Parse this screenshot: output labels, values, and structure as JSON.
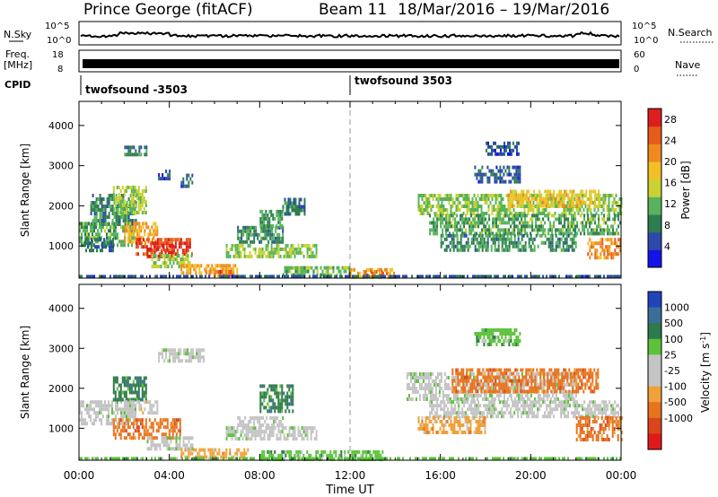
{
  "header": {
    "station": "Prince George (fitACF)",
    "beam": "Beam 11",
    "date_range": "18/Mar/2016 – 19/Mar/2016"
  },
  "noise_panel": {
    "left_label": "N.Sky",
    "right_label": "N.Search",
    "left_ticks": [
      "10^5",
      "10^0"
    ],
    "right_ticks": [
      "10^5",
      "10^0"
    ]
  },
  "freq_panel": {
    "left_label_1": "Freq.",
    "left_label_2": "[MHz]",
    "right_label": "Nave",
    "left_ticks": [
      "18",
      "8"
    ],
    "right_ticks": [
      "60",
      "0"
    ]
  },
  "cpid_panel": {
    "label": "CPID",
    "entries": [
      {
        "name": "twofsound",
        "id": "-3503",
        "start_hour": 0
      },
      {
        "name": "twofsound",
        "id": "3503",
        "start_hour": 12
      }
    ]
  },
  "shared_x_axis": {
    "label": "Time UT",
    "ticks": [
      "00:00",
      "04:00",
      "08:00",
      "12:00",
      "16:00",
      "20:00",
      "00:00"
    ],
    "tick_hours": [
      0,
      4,
      8,
      12,
      16,
      20,
      24
    ]
  },
  "colors": {
    "power_scale": [
      "#1414e6",
      "#2c4aa8",
      "#2e7d50",
      "#58b35c",
      "#c8d232",
      "#f2c026",
      "#f08a1e",
      "#e65a1a",
      "#dc1e1e"
    ],
    "velocity_scale": [
      "#2244bb",
      "#3a6e99",
      "#2d7a4a",
      "#5cc23a",
      "#c4c4c4",
      "#c4c4c4",
      "#f0a23a",
      "#e8731e",
      "#d9461c",
      "#e01a1a"
    ]
  },
  "chart_data": [
    {
      "type": "heatmap",
      "name": "power",
      "xlabel": "",
      "ylabel": "Slant Range [km]",
      "xlim": [
        0,
        24
      ],
      "ylim": [
        200,
        4600
      ],
      "yticks": [
        1000,
        2000,
        3000,
        4000
      ],
      "colorbar_label": "Power [dB]",
      "colorbar_ticks": [
        4,
        8,
        12,
        16,
        20,
        24,
        28
      ],
      "colorbar_range": [
        0,
        30
      ],
      "regions": [
        {
          "t0": 0.0,
          "t1": 2.6,
          "r0": 1000,
          "r1": 1600,
          "v": 11
        },
        {
          "t0": 0.5,
          "t1": 2.5,
          "r0": 1500,
          "r1": 2300,
          "v": 9
        },
        {
          "t0": 1.5,
          "t1": 3.0,
          "r0": 1800,
          "r1": 2500,
          "v": 14
        },
        {
          "t0": 2.0,
          "t1": 3.5,
          "r0": 1100,
          "r1": 1600,
          "v": 20
        },
        {
          "t0": 2.5,
          "t1": 5.0,
          "r0": 800,
          "r1": 1200,
          "v": 26
        },
        {
          "t0": 3.0,
          "t1": 4.2,
          "r0": 700,
          "r1": 1050,
          "v": 29
        },
        {
          "t0": 0.2,
          "t1": 1.5,
          "r0": 900,
          "r1": 1200,
          "v": 7
        },
        {
          "t0": 3.2,
          "t1": 5.0,
          "r0": 500,
          "r1": 800,
          "v": 14
        },
        {
          "t0": 4.5,
          "t1": 7.0,
          "r0": 350,
          "r1": 550,
          "v": 20
        },
        {
          "t0": 5.5,
          "t1": 6.8,
          "r0": 250,
          "r1": 400,
          "v": 24
        },
        {
          "t0": 6.5,
          "t1": 10.5,
          "r0": 750,
          "r1": 1050,
          "v": 13
        },
        {
          "t0": 7.0,
          "t1": 9.0,
          "r0": 1100,
          "r1": 1500,
          "v": 9
        },
        {
          "t0": 8.0,
          "t1": 9.0,
          "r0": 1500,
          "r1": 1900,
          "v": 10
        },
        {
          "t0": 9.0,
          "t1": 10.0,
          "r0": 1800,
          "r1": 2200,
          "v": 8
        },
        {
          "t0": 9.0,
          "t1": 12.0,
          "r0": 250,
          "r1": 500,
          "v": 12
        },
        {
          "t0": 12.0,
          "t1": 14.0,
          "r0": 250,
          "r1": 450,
          "v": 21
        },
        {
          "t0": 12.5,
          "t1": 13.5,
          "r0": 300,
          "r1": 400,
          "v": 25
        },
        {
          "t0": 2.0,
          "t1": 3.0,
          "r0": 3300,
          "r1": 3500,
          "v": 8
        },
        {
          "t0": 3.5,
          "t1": 4.0,
          "r0": 2700,
          "r1": 2900,
          "v": 5
        },
        {
          "t0": 4.5,
          "t1": 5.0,
          "r0": 2500,
          "r1": 2800,
          "v": 6
        },
        {
          "t0": 15.0,
          "t1": 24.0,
          "r0": 1800,
          "r1": 2300,
          "v": 13
        },
        {
          "t0": 15.5,
          "t1": 24.0,
          "r0": 1300,
          "r1": 1800,
          "v": 11
        },
        {
          "t0": 16.0,
          "t1": 22.0,
          "r0": 900,
          "r1": 1300,
          "v": 9
        },
        {
          "t0": 19.0,
          "t1": 23.0,
          "r0": 2000,
          "r1": 2400,
          "v": 18
        },
        {
          "t0": 22.5,
          "t1": 24.0,
          "r0": 700,
          "r1": 1200,
          "v": 22
        },
        {
          "t0": 17.5,
          "t1": 19.5,
          "r0": 2600,
          "r1": 3000,
          "v": 6
        },
        {
          "t0": 18.0,
          "t1": 19.5,
          "r0": 3300,
          "r1": 3600,
          "v": 5
        },
        {
          "t0": 0.0,
          "t1": 24.0,
          "r0": 200,
          "r1": 280,
          "v": 6
        }
      ]
    },
    {
      "type": "heatmap",
      "name": "velocity",
      "xlabel": "Time UT",
      "ylabel": "Slant Range [km]",
      "xlim": [
        0,
        24
      ],
      "ylim": [
        200,
        4600
      ],
      "yticks": [
        1000,
        2000,
        3000,
        4000
      ],
      "colorbar_label": "Velocity [m s-1]",
      "colorbar_ticks": [
        1000,
        500,
        100,
        25,
        -25,
        -100,
        -500,
        -1000
      ],
      "regions": [
        {
          "t0": 0.0,
          "t1": 2.5,
          "r0": 1100,
          "r1": 1700,
          "c": 4
        },
        {
          "t0": 1.5,
          "t1": 3.0,
          "r0": 1700,
          "r1": 2300,
          "c": 2
        },
        {
          "t0": 2.0,
          "t1": 3.5,
          "r0": 1400,
          "r1": 1700,
          "c": 5
        },
        {
          "t0": 1.5,
          "t1": 4.5,
          "r0": 800,
          "r1": 1250,
          "c": 7
        },
        {
          "t0": 3.0,
          "t1": 5.0,
          "r0": 500,
          "r1": 800,
          "c": 4
        },
        {
          "t0": 4.5,
          "t1": 7.5,
          "r0": 300,
          "r1": 500,
          "c": 6
        },
        {
          "t0": 6.5,
          "t1": 10.5,
          "r0": 750,
          "r1": 1050,
          "c": 4
        },
        {
          "t0": 8.0,
          "t1": 9.5,
          "r0": 1400,
          "r1": 2100,
          "c": 2
        },
        {
          "t0": 7.0,
          "t1": 9.0,
          "r0": 1050,
          "r1": 1300,
          "c": 4
        },
        {
          "t0": 8.0,
          "t1": 13.5,
          "r0": 200,
          "r1": 450,
          "c": 3
        },
        {
          "t0": 14.5,
          "t1": 22.0,
          "r0": 1700,
          "r1": 2400,
          "c": 4
        },
        {
          "t0": 16.5,
          "t1": 23.0,
          "r0": 1900,
          "r1": 2500,
          "c": 7
        },
        {
          "t0": 15.5,
          "t1": 24.0,
          "r0": 1300,
          "r1": 1700,
          "c": 4
        },
        {
          "t0": 15.0,
          "t1": 18.0,
          "r0": 900,
          "r1": 1300,
          "c": 6
        },
        {
          "t0": 22.0,
          "t1": 24.0,
          "r0": 700,
          "r1": 1300,
          "c": 7
        },
        {
          "t0": 17.5,
          "t1": 19.5,
          "r0": 3100,
          "r1": 3500,
          "c": 3
        },
        {
          "t0": 3.5,
          "t1": 5.5,
          "r0": 2700,
          "r1": 3000,
          "c": 4
        },
        {
          "t0": 0.0,
          "t1": 24.0,
          "r0": 200,
          "r1": 280,
          "c": 3
        }
      ]
    }
  ]
}
